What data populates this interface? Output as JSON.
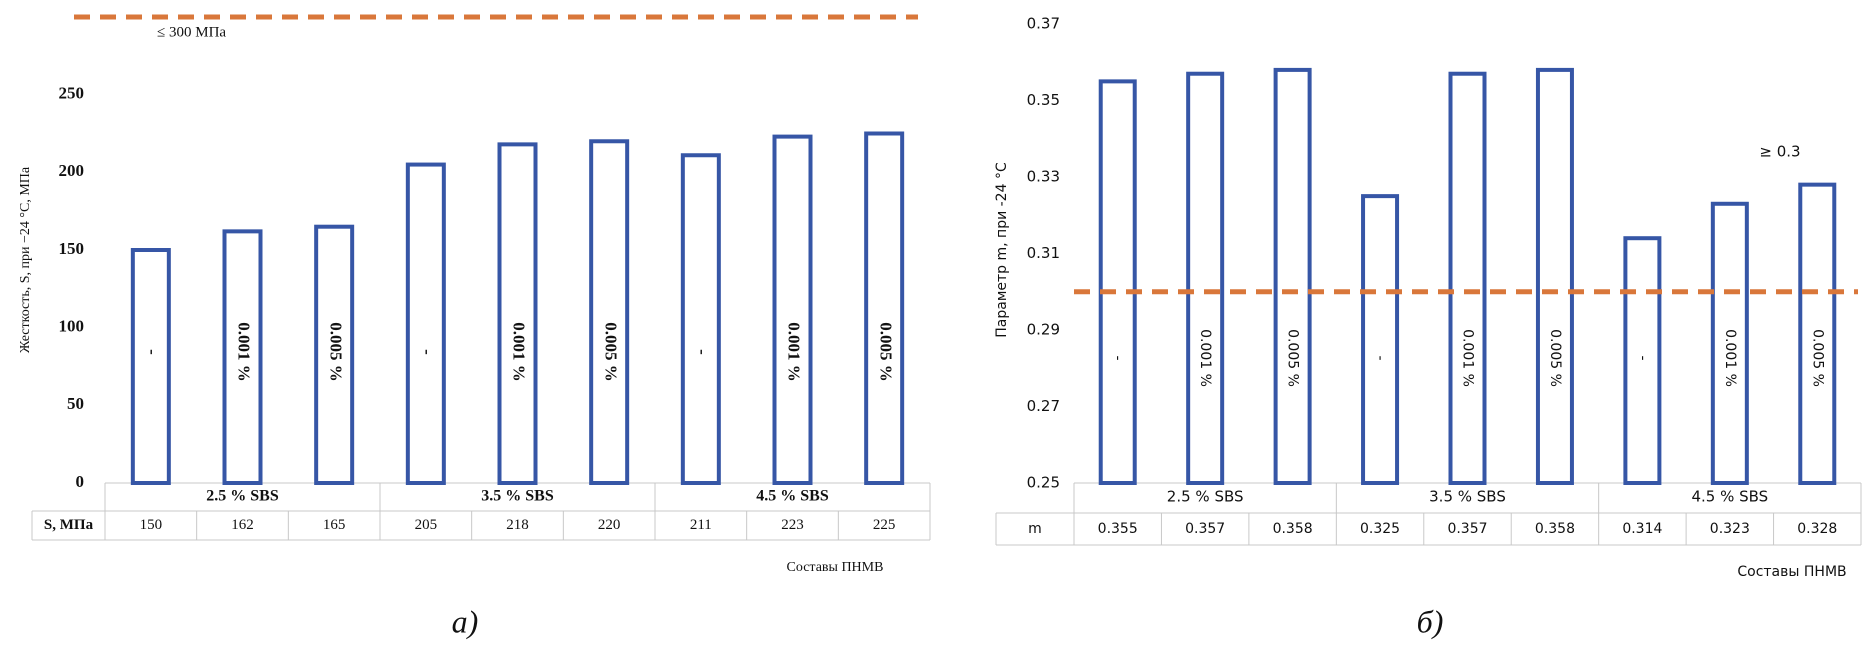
{
  "chart_data": [
    {
      "type": "bar",
      "panel": "а)",
      "ylabel": "Жесткость, S, при −24 °C, МПа",
      "xlabel": "Составы ПНМВ",
      "groups": [
        "2.5 % SBS",
        "3.5 % SBS",
        "4.5 % SBS"
      ],
      "categories": [
        "-",
        "0.001 %",
        "0.005 %",
        "-",
        "0.001 %",
        "0.005 %",
        "-",
        "0.001 %",
        "0.005 %"
      ],
      "table_label": "S, МПа",
      "values": [
        150,
        162,
        165,
        205,
        218,
        220,
        211,
        223,
        225
      ],
      "color": "#3656a6",
      "ylim": [
        0,
        300
      ],
      "yticks": [
        0,
        50,
        100,
        150,
        200,
        250
      ],
      "reference": {
        "value": 300,
        "label": "≤ 300 МПа",
        "color": "#d9773a"
      }
    },
    {
      "type": "bar",
      "panel": "б)",
      "ylabel": "Параметр m, при -24 °C",
      "xlabel": "Составы ПНМВ",
      "groups": [
        "2.5 % SBS",
        "3.5 % SBS",
        "4.5 % SBS"
      ],
      "categories": [
        "-",
        "0.001 %",
        "0.005 %",
        "-",
        "0.001 %",
        "0.005 %",
        "-",
        "0.001 %",
        "0.005 %"
      ],
      "table_label": "m",
      "values": [
        0.355,
        0.357,
        0.358,
        0.325,
        0.357,
        0.358,
        0.314,
        0.323,
        0.328
      ],
      "color": "#3656a6",
      "ylim": [
        0.25,
        0.37
      ],
      "yticks": [
        0.25,
        0.27,
        0.29,
        0.31,
        0.33,
        0.35,
        0.37
      ],
      "reference": {
        "value": 0.3,
        "label": "≥ 0.3",
        "color": "#d9773a"
      }
    }
  ]
}
